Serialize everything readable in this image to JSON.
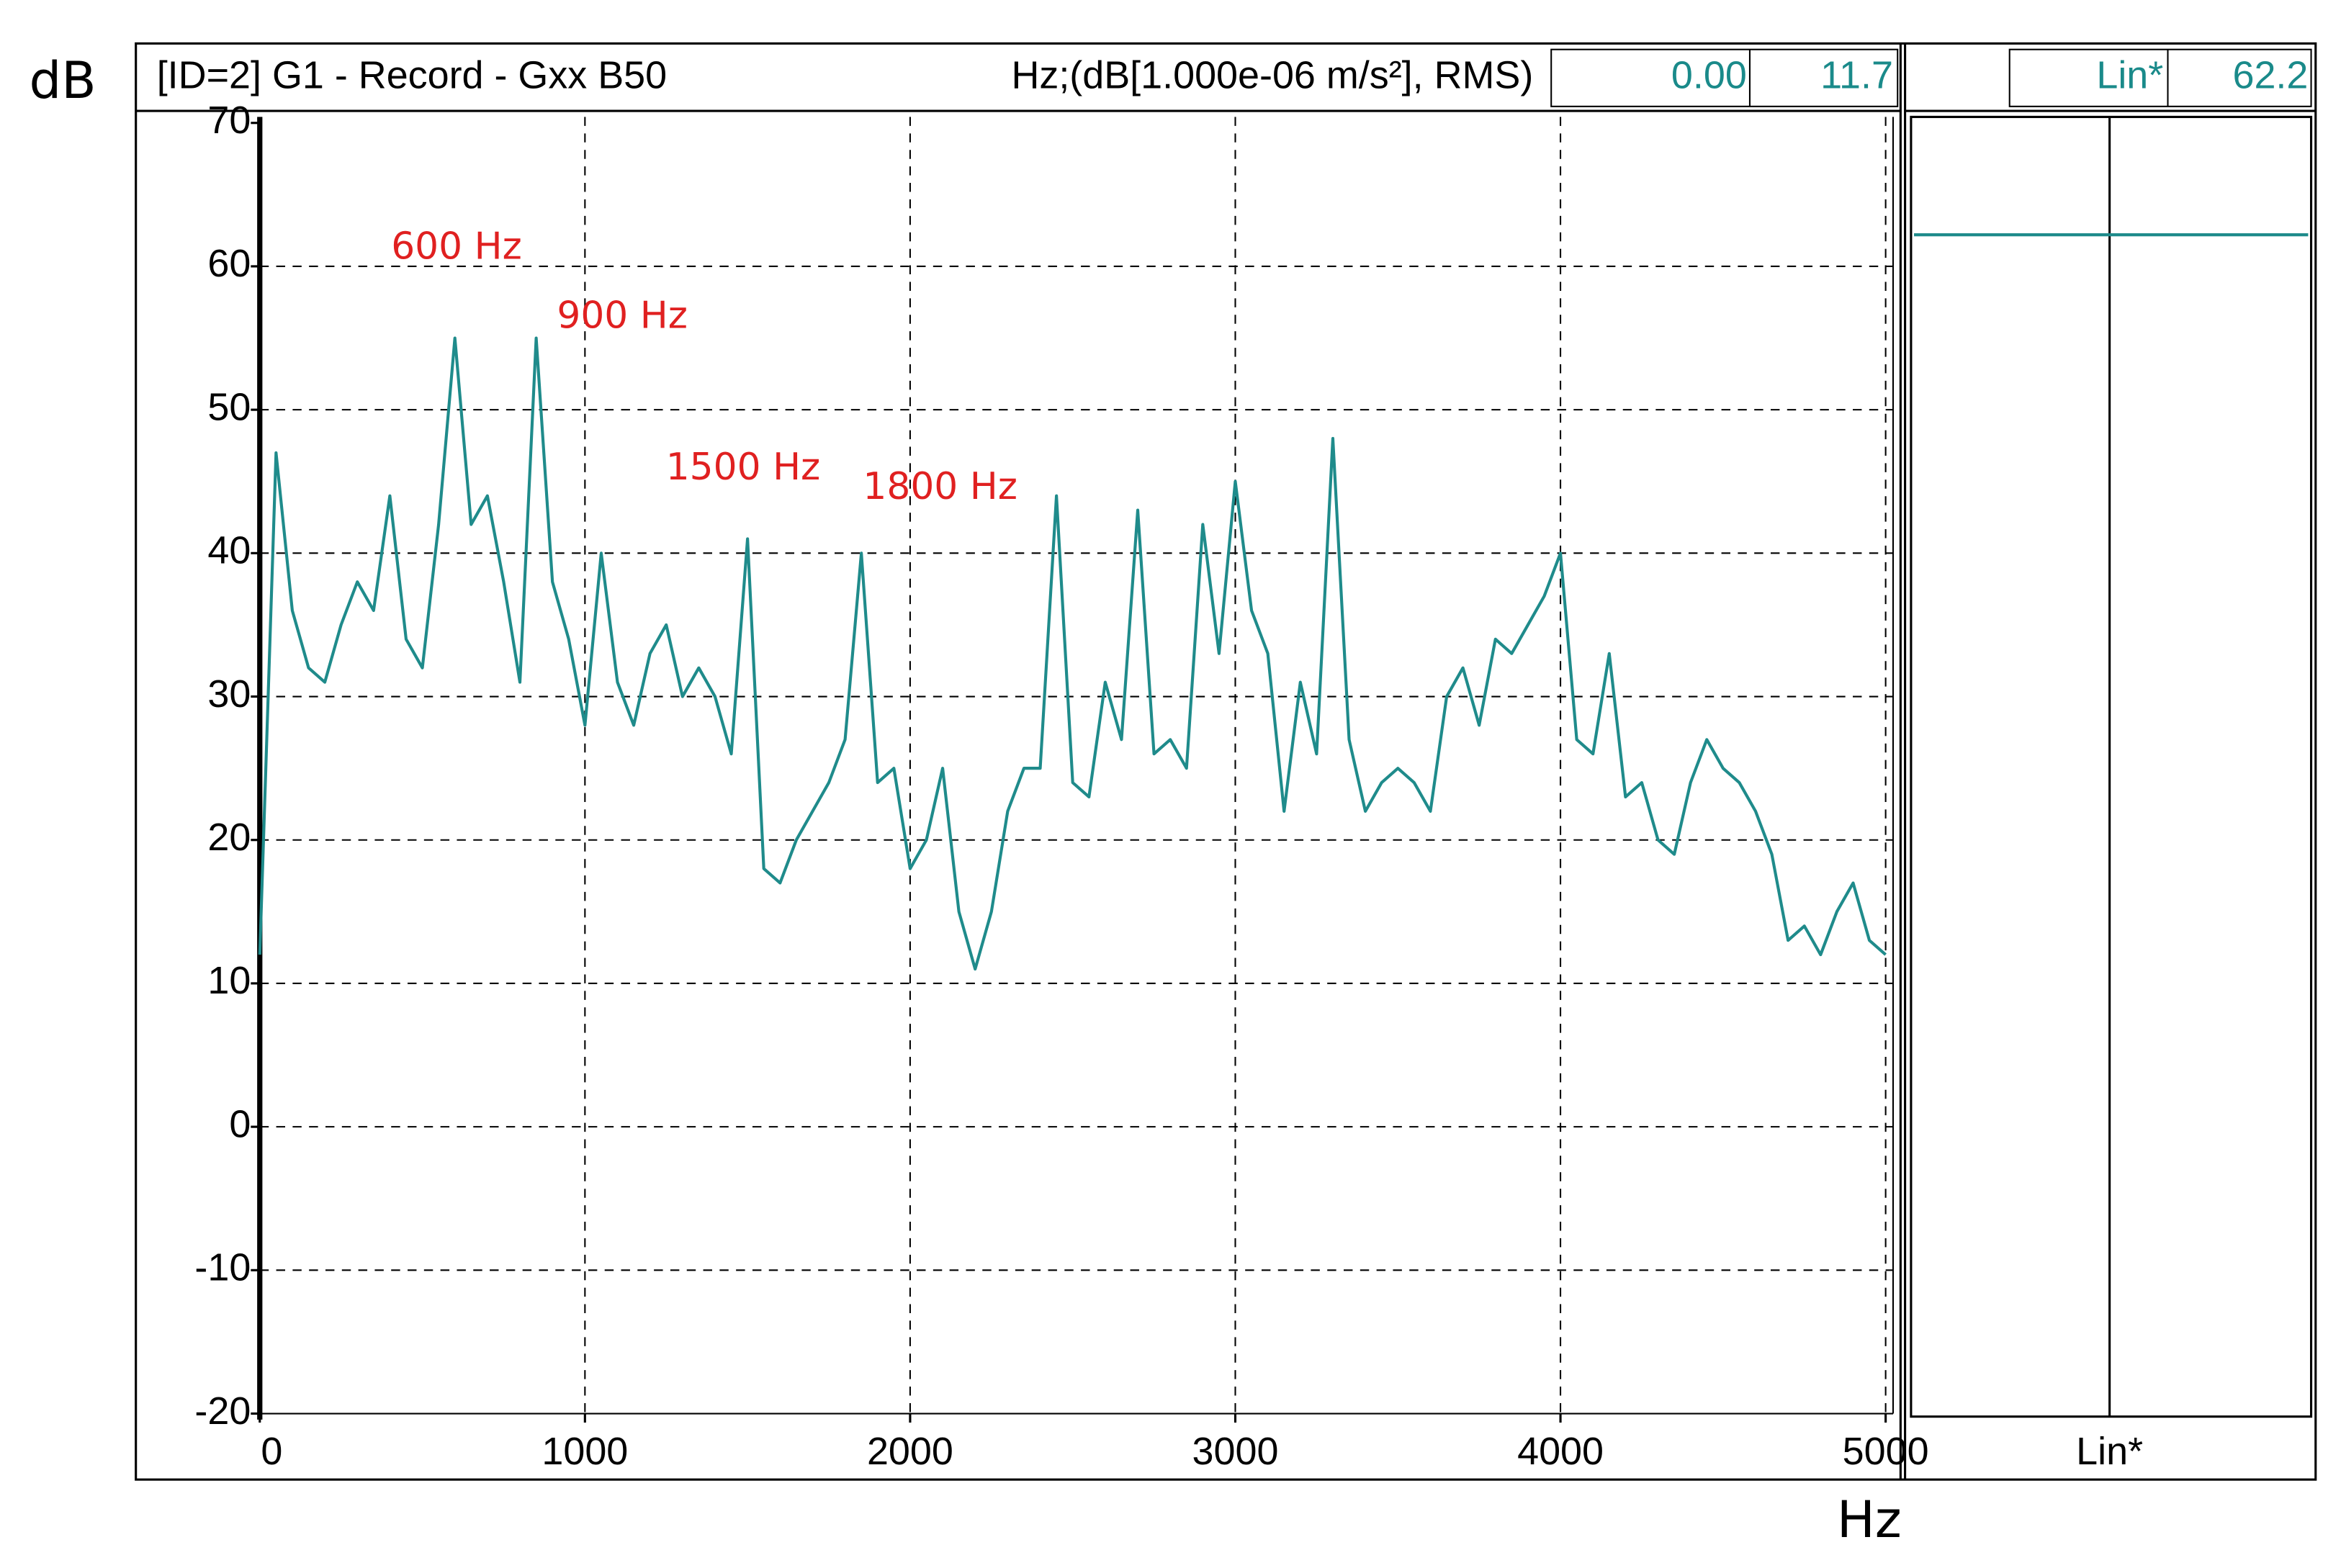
{
  "chart_data": {
    "type": "line",
    "title": "[ID=2] G1  - Record - Gxx B50",
    "subtitle": "Hz;(dB[1.000e-06 m/s²], RMS)",
    "readout": {
      "x": "0.00",
      "y": "11.7"
    },
    "overall": {
      "label": "Lin*",
      "value": 62.2
    },
    "y_label": "dB",
    "x_label": "Hz",
    "annotations": [
      "600 Hz",
      "900 Hz",
      "1500 Hz",
      "1800 Hz"
    ],
    "xlim": [
      0,
      5000
    ],
    "ylim": [
      -20,
      70
    ],
    "xticks": [
      0,
      1000,
      2000,
      3000,
      4000,
      5000
    ],
    "yticks": [
      -20,
      -10,
      0,
      10,
      20,
      30,
      40,
      50,
      60,
      70
    ],
    "grid": true,
    "x": [
      0,
      50,
      100,
      150,
      200,
      250,
      300,
      350,
      400,
      450,
      500,
      550,
      600,
      650,
      700,
      750,
      800,
      850,
      900,
      950,
      1000,
      1050,
      1100,
      1150,
      1200,
      1250,
      1300,
      1350,
      1400,
      1450,
      1500,
      1550,
      1600,
      1650,
      1700,
      1750,
      1800,
      1850,
      1900,
      1950,
      2000,
      2050,
      2100,
      2150,
      2200,
      2250,
      2300,
      2350,
      2400,
      2450,
      2500,
      2550,
      2600,
      2650,
      2700,
      2750,
      2800,
      2850,
      2900,
      2950,
      3000,
      3050,
      3100,
      3150,
      3200,
      3250,
      3300,
      3350,
      3400,
      3450,
      3500,
      3550,
      3600,
      3650,
      3700,
      3750,
      3800,
      3850,
      3900,
      3950,
      4000,
      4050,
      4100,
      4150,
      4200,
      4250,
      4300,
      4350,
      4400,
      4450,
      4500,
      4550,
      4600,
      4650,
      4700,
      4750,
      4800,
      4850,
      4900,
      4950,
      5000
    ],
    "series": [
      {
        "name": "G1",
        "color": "#1f8b8b",
        "values": [
          12,
          47,
          36,
          32,
          31,
          35,
          38,
          36,
          44,
          34,
          32,
          42,
          55,
          42,
          44,
          38,
          31,
          55,
          38,
          34,
          28,
          40,
          31,
          28,
          33,
          35,
          30,
          32,
          30,
          26,
          41,
          18,
          17,
          20,
          22,
          24,
          27,
          40,
          24,
          25,
          18,
          20,
          25,
          15,
          11,
          15,
          22,
          25,
          25,
          44,
          24,
          23,
          31,
          27,
          43,
          26,
          27,
          25,
          42,
          33,
          45,
          36,
          33,
          22,
          31,
          26,
          48,
          27,
          22,
          24,
          25,
          24,
          22,
          30,
          32,
          28,
          34,
          33,
          35,
          37,
          40,
          27,
          26,
          33,
          23,
          24,
          20,
          19,
          24,
          27,
          25,
          24,
          22,
          19,
          13,
          14,
          12,
          15,
          17,
          13,
          12
        ]
      }
    ]
  }
}
